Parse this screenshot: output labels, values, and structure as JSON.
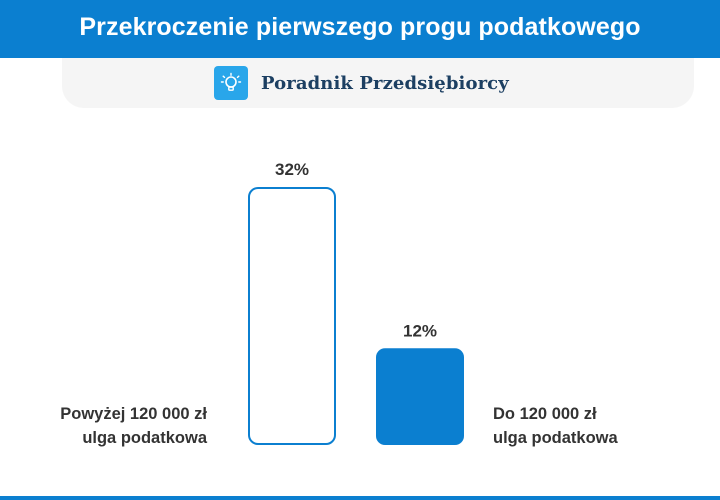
{
  "header": {
    "title": "Przekroczenie pierwszego progu podatkowego"
  },
  "brand": {
    "name": "Poradnik Przedsiębiorcy",
    "icon": "lightbulb-icon"
  },
  "colors": {
    "header_bg": "#0b7fd0",
    "bar_fill": "#0b7fd0",
    "bar_outline": "#0b7fd0",
    "text": "#333333",
    "brand_text": "#1c3f62"
  },
  "chart_data": {
    "type": "bar",
    "categories": [
      [
        "Powyżej 120 000 zł",
        "ulga podatkowa"
      ],
      [
        "Do 120 000 zł",
        "ulga podatkowa"
      ]
    ],
    "values": [
      32,
      12
    ],
    "value_labels": [
      "32%",
      "12%"
    ],
    "bar_styles": [
      "outline",
      "filled"
    ],
    "ylim": [
      0,
      32
    ],
    "grid": false,
    "legend": "none"
  }
}
